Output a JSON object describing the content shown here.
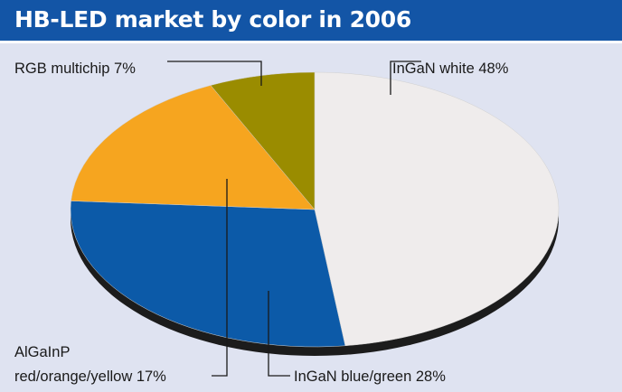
{
  "title": "HB-LED market by color in 2006",
  "colors": {
    "title_bar": "#1355a6",
    "background": "#dfe3f1",
    "edge": "#1c1c1c"
  },
  "chart_data": {
    "type": "pie",
    "style": "3d",
    "title": "HB-LED market by color in 2006",
    "slices": [
      {
        "name": "InGaN white",
        "value": 48,
        "label": "InGaN white 48%",
        "color": "#efecec"
      },
      {
        "name": "InGaN blue/green",
        "value": 28,
        "label": "InGaN blue/green 28%",
        "color": "#0c5aa8"
      },
      {
        "name": "AlGaInP red/orange/yellow",
        "value": 17,
        "label_lines": [
          "AlGaInP",
          "red/orange/yellow 17%"
        ],
        "color": "#f6a51f"
      },
      {
        "name": "RGB multichip",
        "value": 7,
        "label": "RGB multichip 7%",
        "color": "#9a8c00"
      }
    ]
  }
}
